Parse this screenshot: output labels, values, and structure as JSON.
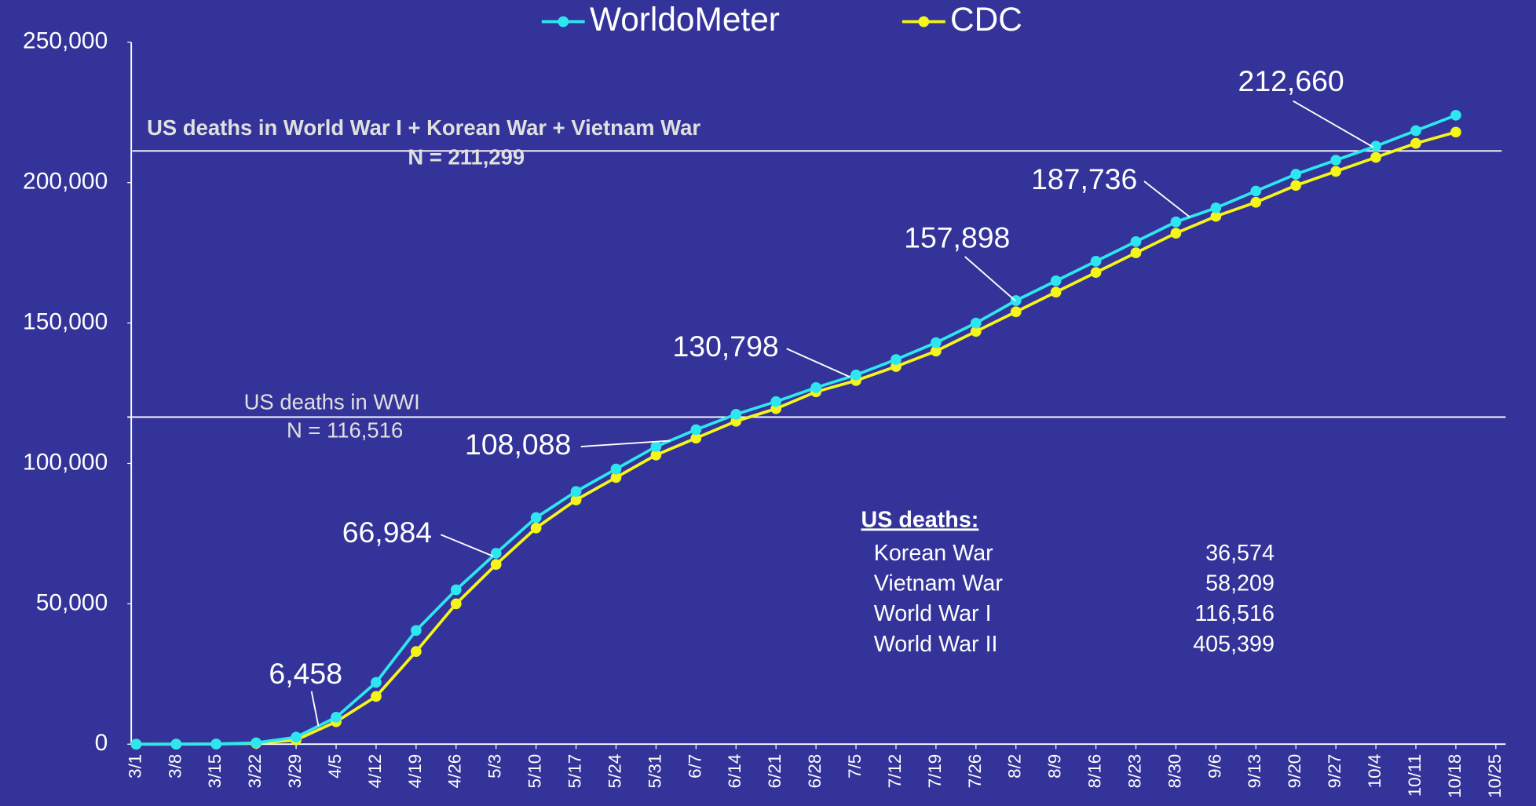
{
  "chart_data": {
    "type": "line",
    "categories": [
      "3/1",
      "3/8",
      "3/15",
      "3/22",
      "3/29",
      "4/5",
      "4/12",
      "4/19",
      "4/26",
      "5/3",
      "5/10",
      "5/17",
      "5/24",
      "5/31",
      "6/7",
      "6/14",
      "6/21",
      "6/28",
      "7/5",
      "7/12",
      "7/19",
      "7/26",
      "8/2",
      "8/9",
      "8/16",
      "8/23",
      "8/30",
      "9/6",
      "9/13",
      "9/20",
      "9/27",
      "10/4",
      "10/11",
      "10/18",
      "10/25"
    ],
    "series": [
      {
        "name": "WorldoMeter",
        "color": "#2ee6f0",
        "values": [
          1,
          22,
          70,
          500,
          2500,
          9600,
          22000,
          40500,
          55000,
          68000,
          80700,
          90000,
          98000,
          106000,
          112000,
          117500,
          122000,
          127000,
          131500,
          137000,
          143000,
          150000,
          158000,
          165000,
          172000,
          179000,
          186000,
          191000,
          197000,
          203000,
          208000,
          213000,
          218500,
          224000,
          null
        ]
      },
      {
        "name": "CDC",
        "color": "#f5f51a",
        "values": [
          0,
          10,
          50,
          300,
          1500,
          8000,
          17000,
          33000,
          50000,
          64000,
          77000,
          87000,
          95000,
          103000,
          109000,
          115000,
          119500,
          125500,
          129500,
          134500,
          140000,
          147000,
          154000,
          161000,
          168000,
          175000,
          182000,
          188000,
          193000,
          199000,
          204000,
          209000,
          214000,
          218000,
          null
        ]
      }
    ],
    "ylim": [
      0,
      250000
    ],
    "yticks": [
      0,
      {
        "value": 50000,
        "label": "50,000"
      },
      {
        "value": 100000,
        "label": "100,000"
      },
      {
        "value": 150000,
        "label": "150,000"
      },
      {
        "value": 200000,
        "label": "200,000"
      },
      {
        "value": 250000,
        "label": "250,000"
      }
    ],
    "legend": "top",
    "annotations": [
      {
        "value": 6458,
        "label": "6,458"
      },
      {
        "value": 66984,
        "label": "66,984"
      },
      {
        "value": 108088,
        "label": "108,088"
      },
      {
        "value": 130798,
        "label": "130,798"
      },
      {
        "value": 157898,
        "label": "157,898"
      },
      {
        "value": 187736,
        "label": "187,736"
      },
      {
        "value": 212660,
        "label": "212,660"
      }
    ],
    "reference_lines": [
      {
        "value": 211299,
        "label": "US deaths in World War I + Korean War + Vietnam War",
        "n_label": "N = 211,299"
      },
      {
        "value": 116516,
        "label": "US deaths in WWI",
        "n_label": "N = 116,516"
      }
    ]
  },
  "table": {
    "title": "US deaths:",
    "rows": [
      [
        "Korean War",
        "36,574"
      ],
      [
        "Vietnam War",
        "58,209"
      ],
      [
        "World War I",
        "116,516"
      ],
      [
        "World War II",
        "405,399"
      ]
    ]
  }
}
